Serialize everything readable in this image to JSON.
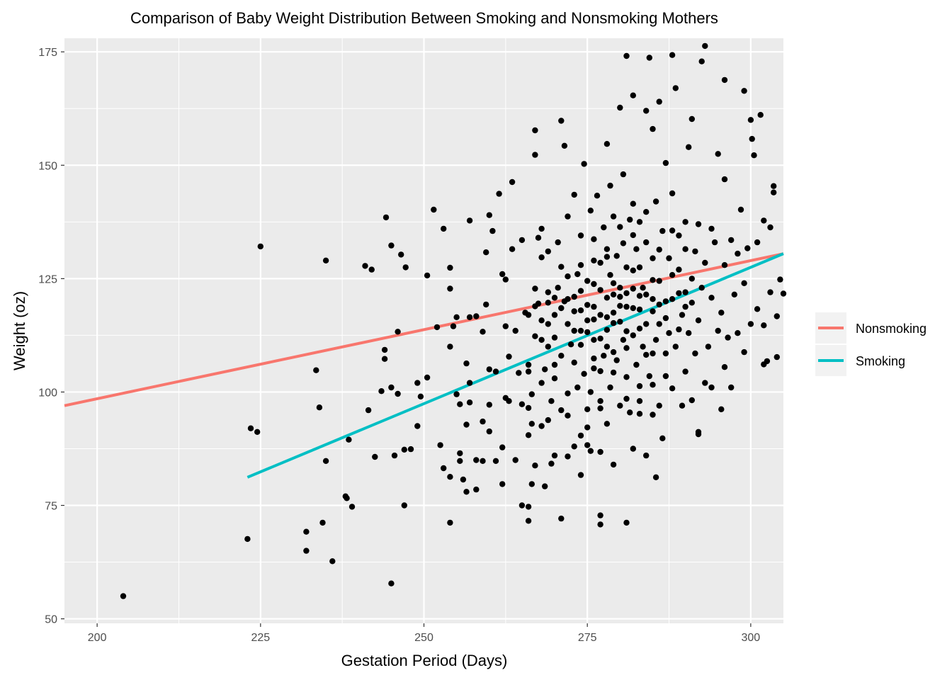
{
  "chart_data": {
    "type": "scatter",
    "title": "Comparison of Baby Weight Distribution Between Smoking and Nonsmoking Mothers",
    "xlabel": "Gestation Period (Days)",
    "ylabel": "Weight (oz)",
    "xlim": [
      195,
      305
    ],
    "ylim": [
      49,
      178
    ],
    "x_ticks": [
      200,
      225,
      250,
      275,
      300
    ],
    "y_ticks": [
      50,
      75,
      100,
      125,
      150,
      175
    ],
    "grid": true,
    "background": "#ebebeb",
    "point_color": "#000000",
    "legend": {
      "position": "right",
      "entries": [
        {
          "name": "Nonsmoking",
          "color": "#f8766d"
        },
        {
          "name": "Smoking",
          "color": "#00bfc4"
        }
      ]
    },
    "lines": [
      {
        "name": "Nonsmoking",
        "color": "#f8766d",
        "x": [
          195,
          305
        ],
        "y": [
          97,
          130.5
        ]
      },
      {
        "name": "Smoking",
        "color": "#00bfc4",
        "x": [
          223,
          305
        ],
        "y": [
          81.2,
          130.5
        ]
      }
    ],
    "points": [
      [
        204,
        55
      ],
      [
        223,
        67.6
      ],
      [
        223.5,
        92
      ],
      [
        224.5,
        91.2
      ],
      [
        225,
        132.1
      ],
      [
        232,
        69.2
      ],
      [
        232,
        65
      ],
      [
        233.5,
        104.8
      ],
      [
        234,
        96.6
      ],
      [
        234.5,
        71.2
      ],
      [
        235,
        84.8
      ],
      [
        235,
        129
      ],
      [
        236,
        62.7
      ],
      [
        238,
        77
      ],
      [
        238.2,
        76.6
      ],
      [
        238.5,
        89.5
      ],
      [
        239,
        74.7
      ],
      [
        241,
        127.8
      ],
      [
        241.5,
        96
      ],
      [
        242,
        127
      ],
      [
        242.5,
        85.7
      ],
      [
        243.5,
        100.2
      ],
      [
        244,
        109.3
      ],
      [
        244,
        107.3
      ],
      [
        244.2,
        138.5
      ],
      [
        245,
        132.3
      ],
      [
        245,
        101
      ],
      [
        245,
        57.8
      ],
      [
        245.5,
        86
      ],
      [
        246,
        113.3
      ],
      [
        246,
        99.6
      ],
      [
        246.5,
        130.3
      ],
      [
        247,
        87.3
      ],
      [
        247,
        75
      ],
      [
        247.2,
        127.5
      ],
      [
        248,
        87.4
      ],
      [
        249,
        92.5
      ],
      [
        249,
        102
      ],
      [
        249.5,
        99
      ],
      [
        250.5,
        103.2
      ],
      [
        250.5,
        125.7
      ],
      [
        251.5,
        140.2
      ],
      [
        252,
        114.3
      ],
      [
        252.5,
        88.3
      ],
      [
        253,
        136
      ],
      [
        253,
        83.2
      ],
      [
        254,
        71.2
      ],
      [
        254,
        81.3
      ],
      [
        254,
        127.4
      ],
      [
        254,
        122.8
      ],
      [
        254,
        110
      ],
      [
        254.5,
        114.5
      ],
      [
        255,
        116.5
      ],
      [
        255,
        99.5
      ],
      [
        255.5,
        86.5
      ],
      [
        255.5,
        84.8
      ],
      [
        255.5,
        97.3
      ],
      [
        256,
        80.7
      ],
      [
        256.5,
        78
      ],
      [
        256.5,
        106.3
      ],
      [
        256.5,
        92.8
      ],
      [
        257,
        116.5
      ],
      [
        257,
        97.7
      ],
      [
        257,
        137.8
      ],
      [
        257,
        102
      ],
      [
        258,
        78.5
      ],
      [
        258,
        85
      ],
      [
        258,
        116.7
      ],
      [
        259,
        84.8
      ],
      [
        259,
        93.5
      ],
      [
        259,
        113.3
      ],
      [
        259.5,
        119.3
      ],
      [
        259.5,
        130.8
      ],
      [
        260,
        97.2
      ],
      [
        260,
        91.3
      ],
      [
        260,
        139
      ],
      [
        260,
        105
      ],
      [
        260.5,
        135.5
      ],
      [
        261,
        104.5
      ],
      [
        261,
        84.8
      ],
      [
        261.5,
        143.7
      ],
      [
        262,
        79.7
      ],
      [
        262,
        87.8
      ],
      [
        262,
        126
      ],
      [
        262.5,
        98.7
      ],
      [
        262.5,
        114.5
      ],
      [
        262.5,
        124.8
      ],
      [
        263,
        98
      ],
      [
        263,
        107.8
      ],
      [
        263.5,
        131.5
      ],
      [
        263.5,
        146.3
      ],
      [
        264,
        113.5
      ],
      [
        264,
        85
      ],
      [
        264.5,
        104.2
      ],
      [
        265,
        97.3
      ],
      [
        265,
        133.5
      ],
      [
        265.5,
        117.5
      ],
      [
        266,
        74.7
      ],
      [
        266,
        90.5
      ],
      [
        266,
        71.6
      ],
      [
        266,
        106
      ],
      [
        266,
        117
      ],
      [
        266,
        96.5
      ],
      [
        266.5,
        99.5
      ],
      [
        266.5,
        79.7
      ],
      [
        266.5,
        93
      ],
      [
        267,
        83.8
      ],
      [
        267,
        112.3
      ],
      [
        267,
        122.8
      ],
      [
        267,
        152.3
      ],
      [
        267,
        157.7
      ],
      [
        267.5,
        134
      ],
      [
        267.5,
        119.5
      ],
      [
        268,
        129.7
      ],
      [
        268,
        92.5
      ],
      [
        268,
        102
      ],
      [
        268,
        136
      ],
      [
        268.5,
        79.2
      ],
      [
        268.5,
        105
      ],
      [
        269,
        131
      ],
      [
        269,
        122
      ],
      [
        269,
        110
      ],
      [
        269,
        93.8
      ],
      [
        269.5,
        84.2
      ],
      [
        269.5,
        98
      ],
      [
        270,
        86
      ],
      [
        270,
        117
      ],
      [
        270,
        103
      ],
      [
        270,
        112
      ],
      [
        270.5,
        123
      ],
      [
        270.5,
        133
      ],
      [
        271,
        72.1
      ],
      [
        271,
        96
      ],
      [
        271,
        159.8
      ],
      [
        271,
        108
      ],
      [
        271.5,
        154.3
      ],
      [
        271.5,
        120
      ],
      [
        272,
        85.8
      ],
      [
        272,
        94.8
      ],
      [
        272,
        99.7
      ],
      [
        272,
        115
      ],
      [
        272,
        138.7
      ],
      [
        272.5,
        110.5
      ],
      [
        273,
        88
      ],
      [
        273,
        106.5
      ],
      [
        273,
        143.5
      ],
      [
        273,
        121
      ],
      [
        273.5,
        126
      ],
      [
        273.5,
        101
      ],
      [
        274,
        81.7
      ],
      [
        274,
        90.4
      ],
      [
        274,
        113.5
      ],
      [
        274,
        128
      ],
      [
        274,
        134.5
      ],
      [
        274.5,
        150.3
      ],
      [
        274.5,
        104
      ],
      [
        275,
        88.3
      ],
      [
        275,
        96.2
      ],
      [
        275,
        115.8
      ],
      [
        275,
        119.2
      ],
      [
        275,
        124.5
      ],
      [
        275.5,
        87
      ],
      [
        275.5,
        100
      ],
      [
        275.5,
        140
      ],
      [
        276,
        105.2
      ],
      [
        276,
        111.5
      ],
      [
        276,
        123.8
      ],
      [
        276,
        129
      ],
      [
        276.5,
        143.3
      ],
      [
        277,
        70.8
      ],
      [
        277,
        72.8
      ],
      [
        277,
        86.8
      ],
      [
        277,
        98
      ],
      [
        277,
        117
      ],
      [
        277,
        128.5
      ],
      [
        277.5,
        108
      ],
      [
        277.5,
        136.3
      ],
      [
        278,
        93
      ],
      [
        278,
        113.7
      ],
      [
        278,
        120.8
      ],
      [
        278,
        131.5
      ],
      [
        278,
        154.7
      ],
      [
        278.5,
        101
      ],
      [
        278.5,
        125.8
      ],
      [
        278.5,
        145.5
      ],
      [
        279,
        84
      ],
      [
        279,
        115.2
      ],
      [
        279,
        121.5
      ],
      [
        279,
        138.7
      ],
      [
        279.5,
        107
      ],
      [
        279.5,
        130
      ],
      [
        280,
        97
      ],
      [
        280,
        119
      ],
      [
        280,
        123
      ],
      [
        280,
        162.7
      ],
      [
        280.5,
        111.5
      ],
      [
        280.5,
        132.8
      ],
      [
        280.5,
        148
      ],
      [
        281,
        71.2
      ],
      [
        281,
        103.3
      ],
      [
        281,
        118.8
      ],
      [
        281,
        127.5
      ],
      [
        281,
        174.1
      ],
      [
        281.5,
        95.5
      ],
      [
        281.5,
        138
      ],
      [
        282,
        87.5
      ],
      [
        282,
        112.5
      ],
      [
        282,
        122.8
      ],
      [
        282,
        141.5
      ],
      [
        282,
        165.4
      ],
      [
        282.5,
        106
      ],
      [
        282.5,
        131.5
      ],
      [
        283,
        98
      ],
      [
        283,
        118.2
      ],
      [
        283,
        127.5
      ],
      [
        283,
        137.5
      ],
      [
        283.5,
        110
      ],
      [
        283.5,
        123
      ],
      [
        284,
        86
      ],
      [
        284,
        115
      ],
      [
        284,
        133
      ],
      [
        284,
        162
      ],
      [
        284.5,
        173.7
      ],
      [
        284.5,
        103.5
      ],
      [
        285,
        95
      ],
      [
        285,
        120.5
      ],
      [
        285,
        129.5
      ],
      [
        285,
        158
      ],
      [
        285.5,
        81.2
      ],
      [
        285.5,
        111.5
      ],
      [
        285.5,
        142
      ],
      [
        286,
        97
      ],
      [
        286,
        115
      ],
      [
        286,
        124.5
      ],
      [
        286,
        164
      ],
      [
        286.5,
        89.8
      ],
      [
        286.5,
        135.5
      ],
      [
        287,
        103.5
      ],
      [
        287,
        120
      ],
      [
        287,
        150.5
      ],
      [
        287.5,
        113
      ],
      [
        287.5,
        129.5
      ],
      [
        288,
        100.8
      ],
      [
        288,
        120.5
      ],
      [
        288,
        143.8
      ],
      [
        288,
        174.3
      ],
      [
        288.5,
        110
      ],
      [
        288.5,
        167
      ],
      [
        289,
        127
      ],
      [
        289,
        134.5
      ],
      [
        289.5,
        97
      ],
      [
        289.5,
        117
      ],
      [
        290,
        104.5
      ],
      [
        290,
        122
      ],
      [
        290,
        137.5
      ],
      [
        290.5,
        154
      ],
      [
        290.5,
        113
      ],
      [
        291,
        98.2
      ],
      [
        291,
        125
      ],
      [
        291,
        160.2
      ],
      [
        291.5,
        108.5
      ],
      [
        291.5,
        131
      ],
      [
        292,
        91.2
      ],
      [
        292,
        90.7
      ],
      [
        292,
        115.8
      ],
      [
        292,
        137
      ],
      [
        292.5,
        172.9
      ],
      [
        292.5,
        123
      ],
      [
        293,
        102
      ],
      [
        293,
        128.5
      ],
      [
        293,
        176.3
      ],
      [
        293.5,
        110
      ],
      [
        294,
        101
      ],
      [
        294,
        120.8
      ],
      [
        294,
        136
      ],
      [
        294.5,
        133
      ],
      [
        295,
        113.5
      ],
      [
        295,
        152.5
      ],
      [
        295.5,
        96.2
      ],
      [
        295.5,
        117.5
      ],
      [
        296,
        105.5
      ],
      [
        296,
        128
      ],
      [
        296,
        146.9
      ],
      [
        296,
        168.8
      ],
      [
        296.5,
        112
      ],
      [
        297,
        101
      ],
      [
        297,
        133.5
      ],
      [
        297.5,
        121.5
      ],
      [
        298,
        113
      ],
      [
        298,
        130.5
      ],
      [
        298.5,
        140.2
      ],
      [
        299,
        166.4
      ],
      [
        299,
        108.8
      ],
      [
        299,
        124
      ],
      [
        299.5,
        131.7
      ],
      [
        300,
        115
      ],
      [
        300,
        160
      ],
      [
        300.2,
        155.8
      ],
      [
        300.5,
        152.2
      ],
      [
        301,
        133
      ],
      [
        301,
        118.3
      ],
      [
        301.5,
        161.1
      ],
      [
        302,
        114.7
      ],
      [
        302,
        106.1
      ],
      [
        302,
        137.8
      ],
      [
        302.5,
        106.8
      ],
      [
        303,
        136.3
      ],
      [
        303,
        122
      ],
      [
        303.5,
        144
      ],
      [
        303.5,
        145.4
      ],
      [
        304,
        116.7
      ],
      [
        304,
        107.7
      ],
      [
        304.5,
        124.8
      ],
      [
        305,
        121.7
      ],
      [
        265,
        75
      ],
      [
        266,
        104.5
      ],
      [
        268,
        111.5
      ],
      [
        269,
        115
      ],
      [
        270,
        106
      ],
      [
        271,
        118.5
      ],
      [
        272,
        125.5
      ],
      [
        273,
        113.5
      ],
      [
        274,
        118
      ],
      [
        276,
        116
      ],
      [
        277,
        122.5
      ],
      [
        278,
        110
      ],
      [
        279,
        117.5
      ],
      [
        280,
        115.5
      ],
      [
        281,
        121.8
      ],
      [
        282,
        118.5
      ],
      [
        283,
        114
      ],
      [
        284,
        121.5
      ],
      [
        285,
        117.8
      ],
      [
        286,
        119.3
      ],
      [
        287,
        108.5
      ],
      [
        288,
        125.8
      ],
      [
        289,
        113.8
      ],
      [
        290,
        118.8
      ],
      [
        291,
        119.7
      ],
      [
        275,
        113.2
      ],
      [
        276,
        118.8
      ],
      [
        277,
        111.8
      ],
      [
        278,
        116.5
      ],
      [
        279,
        124
      ],
      [
        280,
        121
      ],
      [
        281,
        113.4
      ],
      [
        282,
        126.8
      ],
      [
        283,
        121.2
      ],
      [
        284,
        108.2
      ],
      [
        285,
        124.7
      ],
      [
        276,
        107.4
      ],
      [
        277,
        104.6
      ],
      [
        278,
        129.8
      ],
      [
        279,
        108.8
      ],
      [
        281,
        109.7
      ],
      [
        283,
        101.3
      ],
      [
        285,
        101.6
      ],
      [
        287,
        116.3
      ],
      [
        289,
        121.8
      ],
      [
        273,
        117.8
      ],
      [
        274,
        122.3
      ],
      [
        272,
        120.5
      ],
      [
        271,
        127.6
      ],
      [
        270,
        120.8
      ],
      [
        269,
        119.7
      ],
      [
        268,
        115.8
      ],
      [
        267,
        118.9
      ],
      [
        274,
        110.4
      ],
      [
        276,
        133.7
      ],
      [
        280,
        136.4
      ],
      [
        282,
        134.6
      ],
      [
        284,
        139.7
      ],
      [
        286,
        131.4
      ],
      [
        288,
        135.6
      ],
      [
        290,
        131.5
      ],
      [
        279,
        104.3
      ],
      [
        277,
        96.4
      ],
      [
        275,
        92.2
      ],
      [
        281,
        98.5
      ],
      [
        283,
        95.2
      ],
      [
        285,
        108.5
      ]
    ]
  }
}
